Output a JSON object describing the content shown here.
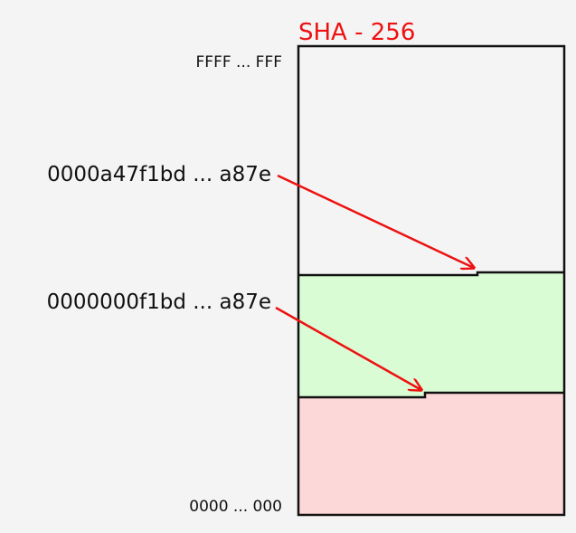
{
  "diagram": {
    "title": "SHA - 256",
    "top_label": "FFFF ... FFF",
    "bottom_label": "0000 ... 000",
    "hash_1": "0000a47f1bd ... a87e",
    "hash_2": "0000000f1bd ... a87e"
  },
  "colors": {
    "background": "#f4f4f4",
    "title": "#ee1111",
    "arrow": "#ee1111",
    "green_region": "#d9fcd4",
    "red_region": "#fdd8d8",
    "outline": "#111111"
  }
}
